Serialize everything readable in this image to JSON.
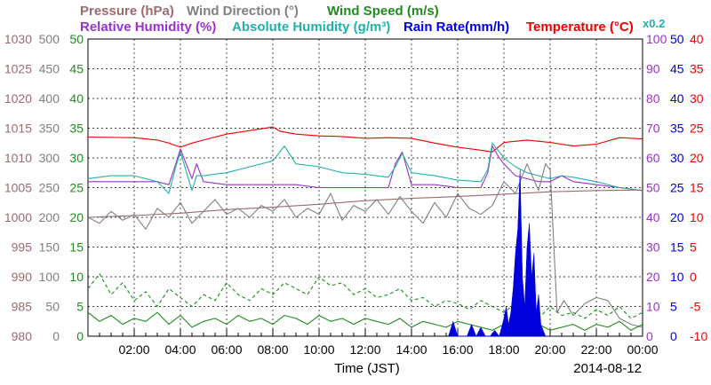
{
  "header": {
    "row1": [
      {
        "text": "Pressure (hPa)",
        "color": "#9c6b6b"
      },
      {
        "text": "Wind Direction (°)",
        "color": "#808080"
      },
      {
        "text": "Wind Speed (m/s)",
        "color": "#1e8c1e"
      }
    ],
    "row2": [
      {
        "text": "Relative Humidity (%)",
        "color": "#9932cc"
      },
      {
        "text": "Absolute Humidity (g/m³)",
        "color": "#20b2aa"
      },
      {
        "text": "Rain Rate(mm/h)",
        "color": "#0000dd"
      },
      {
        "text": "Temperature (°C)",
        "color": "#ee0000"
      }
    ],
    "multiplier": "x0.2"
  },
  "footer": {
    "xlabel": "Time (JST)",
    "date": "2014-08-12"
  },
  "axes": {
    "pressure": {
      "color": "#9c6b6b",
      "ticks": [
        "980",
        "985",
        "990",
        "995",
        "1000",
        "1005",
        "1010",
        "1015",
        "1020",
        "1025",
        "1030"
      ]
    },
    "wind_dir": {
      "color": "#808080",
      "ticks": [
        "0",
        "50",
        "100",
        "150",
        "200",
        "250",
        "300",
        "350",
        "400",
        "450",
        "500"
      ]
    },
    "wind_speed": {
      "color": "#1e8c1e",
      "ticks": [
        "0",
        "5",
        "10",
        "15",
        "20",
        "25",
        "30",
        "35",
        "40",
        "45",
        "50"
      ]
    },
    "humidity": {
      "color": "#9932cc",
      "ticks": [
        "0",
        "10",
        "20",
        "30",
        "40",
        "50",
        "60",
        "70",
        "80",
        "90",
        "100"
      ]
    },
    "rain": {
      "color": "#0000dd",
      "ticks": [
        "0",
        "5",
        "10",
        "15",
        "20",
        "25",
        "30",
        "35",
        "40",
        "45",
        "50"
      ]
    },
    "temperature": {
      "color": "#ee0000",
      "ticks": [
        "-10",
        "-5",
        "0",
        "5",
        "10",
        "15",
        "20",
        "25",
        "30",
        "35",
        "40"
      ]
    },
    "x": {
      "ticks": [
        "02:00",
        "04:00",
        "06:00",
        "08:00",
        "10:00",
        "12:00",
        "14:00",
        "16:00",
        "18:00",
        "20:00",
        "22:00",
        "00:00"
      ]
    }
  },
  "chart_data": {
    "type": "line",
    "x_unit": "hour (JST)",
    "x_range": [
      0,
      24
    ],
    "grid": true,
    "series": [
      {
        "name": "Temperature (°C)",
        "axis": "temperature",
        "color": "#ee0000",
        "style": "solid",
        "x": [
          0,
          2,
          3,
          3.5,
          4,
          4.5,
          5,
          6,
          7,
          8,
          8.3,
          9,
          10,
          11,
          12,
          13,
          14,
          15,
          16,
          17,
          17.5,
          18,
          19,
          20,
          21,
          22,
          23,
          24
        ],
        "y": [
          23.5,
          23.4,
          23.0,
          22.5,
          21.8,
          22.5,
          23.0,
          24.0,
          24.6,
          25.2,
          24.5,
          24.0,
          23.7,
          23.6,
          23.3,
          23.4,
          23.3,
          22.5,
          21.8,
          21.3,
          21.0,
          22.6,
          23.0,
          22.6,
          22.0,
          22.3,
          23.4,
          23.2
        ]
      },
      {
        "name": "Relative Humidity (%)",
        "axis": "humidity",
        "color": "#9932cc",
        "style": "solid",
        "x": [
          0,
          1,
          2,
          3,
          3.5,
          3.8,
          4.0,
          4.5,
          4.7,
          5,
          6,
          7,
          8,
          9,
          10,
          11,
          12,
          13,
          13.3,
          13.6,
          14,
          15,
          16,
          17,
          17.3,
          17.5,
          17.8,
          18,
          18.5,
          19,
          19.5,
          20,
          20.5,
          21,
          22,
          23,
          24
        ],
        "y": [
          52,
          52,
          52,
          52,
          51,
          58,
          63,
          53,
          58,
          52,
          51,
          51,
          51,
          51,
          50,
          50,
          50,
          50,
          58,
          62,
          51,
          51,
          50,
          50,
          55,
          64,
          60,
          58,
          54,
          53,
          52,
          52,
          54,
          52,
          51,
          50,
          49
        ]
      },
      {
        "name": "Absolute Humidity (g/m³)",
        "axis": "humidity_x0.2",
        "color": "#20b2aa",
        "style": "solid",
        "x": [
          0,
          1,
          2,
          3,
          3.5,
          3.8,
          4.0,
          4.5,
          4.7,
          5,
          6,
          7,
          8,
          8.5,
          9,
          10,
          11,
          12,
          13,
          13.3,
          13.6,
          14,
          15,
          16,
          17,
          17.3,
          17.5,
          17.8,
          18,
          18.5,
          19,
          19.5,
          20,
          20.5,
          21,
          22,
          23,
          24
        ],
        "y": [
          10.6,
          10.8,
          10.8,
          10.4,
          9.6,
          11.4,
          12.4,
          9.8,
          10.8,
          10.8,
          11.0,
          11.4,
          11.8,
          12.8,
          11.6,
          11.4,
          11.0,
          10.9,
          10.7,
          11.4,
          12.3,
          11.0,
          10.8,
          10.5,
          10.4,
          11.2,
          13.0,
          12.4,
          12.0,
          11.4,
          11.0,
          10.8,
          10.6,
          10.8,
          10.7,
          10.4,
          10.0,
          9.8
        ]
      },
      {
        "name": "Pressure (hPa)",
        "axis": "pressure",
        "color": "#9c6b6b",
        "style": "solid",
        "x": [
          0,
          2,
          4,
          6,
          8,
          10,
          12,
          14,
          16,
          18,
          20,
          22,
          24
        ],
        "y": [
          1000.0,
          1000.3,
          1000.7,
          1001.3,
          1001.7,
          1002.2,
          1002.8,
          1003.2,
          1003.5,
          1003.9,
          1004.3,
          1004.5,
          1004.6
        ]
      },
      {
        "name": "Wind Direction (°)",
        "axis": "wind_dir",
        "color": "#808080",
        "style": "solid",
        "x": [
          0,
          0.5,
          1,
          1.5,
          2,
          2.5,
          3,
          3.5,
          4,
          4.5,
          5,
          5.5,
          6,
          6.5,
          7,
          7.5,
          8,
          8.5,
          9,
          9.5,
          10,
          10.5,
          11,
          11.5,
          12,
          12.5,
          13,
          13.5,
          14,
          14.5,
          15,
          15.5,
          16,
          16.5,
          17,
          17.5,
          18,
          18.5,
          19,
          19.5,
          19.8,
          20.0,
          20.3,
          20.6,
          21,
          21.5,
          22,
          22.5,
          23,
          23.5,
          24
        ],
        "y": [
          200,
          190,
          210,
          195,
          205,
          180,
          215,
          200,
          225,
          190,
          210,
          230,
          205,
          215,
          200,
          220,
          210,
          230,
          200,
          215,
          205,
          240,
          195,
          220,
          210,
          230,
          205,
          235,
          210,
          190,
          225,
          200,
          240,
          215,
          205,
          220,
          260,
          240,
          290,
          245,
          290,
          280,
          40,
          60,
          35,
          55,
          65,
          60,
          30,
          20,
          15
        ]
      },
      {
        "name": "Wind Speed (m/s)",
        "axis": "wind_speed",
        "color": "#1e8c1e",
        "style": "solid",
        "x": [
          0,
          0.5,
          1,
          1.5,
          2,
          2.5,
          3,
          3.5,
          4,
          4.5,
          5,
          5.5,
          6,
          6.5,
          7,
          7.5,
          8,
          8.5,
          9,
          9.5,
          10,
          10.5,
          11,
          11.5,
          12,
          12.5,
          13,
          13.5,
          14,
          14.5,
          15,
          15.5,
          16,
          16.5,
          17,
          17.5,
          18,
          18.5,
          19,
          19.5,
          20,
          20.5,
          21,
          21.5,
          22,
          22.5,
          23,
          23.5,
          24
        ],
        "y": [
          4,
          2.5,
          3.5,
          2,
          3,
          2.5,
          4,
          2,
          3.5,
          1.5,
          2.5,
          3,
          2,
          3.5,
          2.5,
          3,
          2,
          3.5,
          3,
          2,
          3.5,
          2.5,
          3,
          2,
          3,
          2.5,
          2,
          3,
          1.5,
          2.5,
          2,
          1.5,
          2.5,
          2,
          1.5,
          1,
          2,
          1.5,
          1,
          2,
          1,
          1.5,
          2,
          1,
          2,
          1.5,
          2.5,
          1,
          2
        ]
      },
      {
        "name": "Wind Speed gust (m/s)",
        "axis": "wind_speed",
        "color": "#1e8c1e",
        "style": "dashed",
        "x": [
          0,
          0.5,
          1,
          1.5,
          2,
          2.5,
          3,
          3.5,
          4,
          4.5,
          5,
          5.5,
          6,
          6.5,
          7,
          7.5,
          8,
          8.5,
          9,
          9.5,
          10,
          10.5,
          11,
          11.5,
          12,
          12.5,
          13,
          13.5,
          14,
          14.5,
          15,
          15.5,
          16,
          16.5,
          17,
          17.5,
          18,
          18.5,
          19,
          19.5,
          20,
          20.5,
          21,
          21.5,
          22,
          22.5,
          23,
          23.5,
          24
        ],
        "y": [
          8,
          10.5,
          7,
          9,
          6,
          7.5,
          5,
          8,
          6.5,
          5,
          7,
          6,
          9,
          7,
          6,
          8,
          7,
          9,
          8,
          7,
          10,
          8.5,
          9,
          7,
          8,
          6.5,
          7,
          8,
          6,
          6.5,
          5,
          6,
          5.5,
          4.5,
          6,
          5,
          4,
          5.5,
          4.5,
          3,
          5,
          3.5,
          4,
          3,
          4.5,
          3.5,
          5,
          3,
          4
        ]
      },
      {
        "name": "Rain Rate(mm/h)",
        "axis": "rain",
        "color": "#0000dd",
        "style": "area",
        "x": [
          15.6,
          15.8,
          16.0,
          16.4,
          16.6,
          16.8,
          17.0,
          17.2,
          17.4,
          17.6,
          17.8,
          18.0,
          18.1,
          18.2,
          18.3,
          18.4,
          18.5,
          18.6,
          18.7,
          18.8,
          18.9,
          19.0,
          19.1,
          19.2,
          19.3,
          19.4,
          19.5,
          19.6,
          19.8,
          20.0
        ],
        "y": [
          0,
          2.5,
          0,
          0,
          2,
          0,
          1.5,
          0,
          0,
          1,
          0,
          3,
          5,
          2,
          4,
          8,
          14,
          18,
          28,
          10,
          5,
          15,
          19,
          10,
          14,
          4,
          7,
          2,
          0,
          0
        ]
      }
    ]
  }
}
